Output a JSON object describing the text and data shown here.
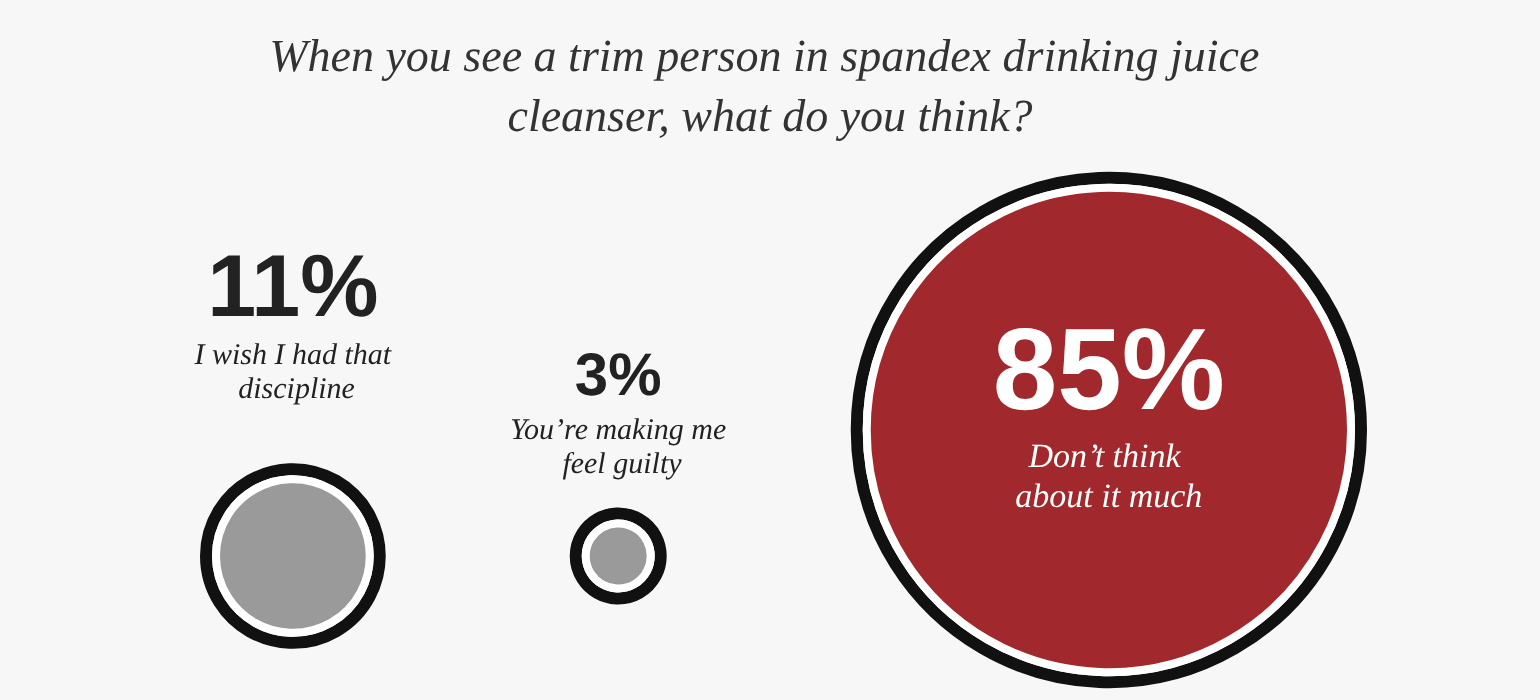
{
  "chart_data": {
    "type": "other",
    "title": "When you see a trim person in spandex drinking juice cleanser, what do you think?",
    "categories": [
      "I wish I had that discipline",
      "You’re making me feel guilty",
      "Don’t think about it much"
    ],
    "values": [
      11,
      3,
      85
    ],
    "value_labels": [
      "11%",
      "3%",
      "85%"
    ],
    "colors": [
      "#9a9a9a",
      "#9a9a9a",
      "#a1282c"
    ]
  }
}
